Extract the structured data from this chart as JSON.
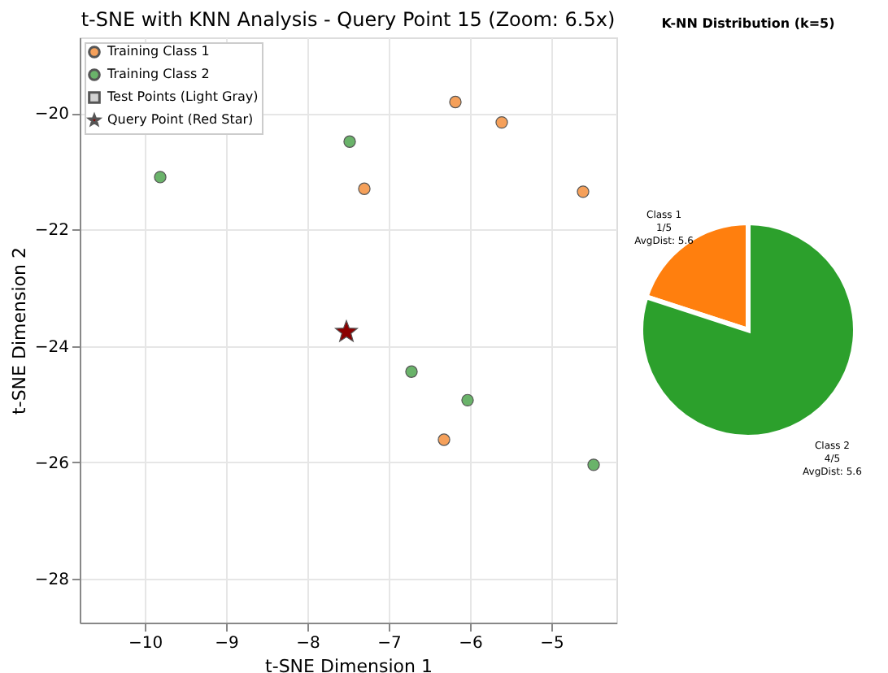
{
  "chart_data": [
    {
      "type": "scatter",
      "title": "t-SNE with KNN Analysis - Query Point 15 (Zoom: 6.5x)",
      "xlabel": "t-SNE Dimension 1",
      "ylabel": "t-SNE Dimension 2",
      "xlim": [
        -10.8,
        -4.2
      ],
      "ylim": [
        -28.75,
        -18.7
      ],
      "xticks": [
        -10,
        -9,
        -8,
        -7,
        -6,
        -5
      ],
      "yticks": [
        -28,
        -26,
        -24,
        -22,
        -20
      ],
      "grid": true,
      "legend": "top left",
      "series": [
        {
          "name": "Training Class 1",
          "color": "#f5a05a",
          "marker": "circle",
          "x": [
            -6.18,
            -5.61,
            -7.3,
            -4.61,
            -6.32
          ],
          "values": [
            -19.81,
            -20.16,
            -21.3,
            -21.35,
            -25.61
          ]
        },
        {
          "name": "Training Class 2",
          "color": "#6ab36a",
          "marker": "circle",
          "x": [
            -7.48,
            -9.81,
            -6.72,
            -6.03,
            -4.48
          ],
          "values": [
            -20.49,
            -21.1,
            -24.44,
            -24.93,
            -26.04
          ]
        },
        {
          "name": "Test Points (Light Gray)",
          "color": "#d3d3d3",
          "marker": "square"
        },
        {
          "name": "Query Point (Red Star)",
          "color": "#8b0000",
          "marker": "star",
          "x": [
            -7.52
          ],
          "values": [
            -23.76
          ]
        }
      ]
    },
    {
      "type": "pie",
      "title": "K-NN Distribution (k=5)",
      "categories": [
        "Class 1\n1/5\nAvgDist: 5.6",
        "Class 2\n4/5\nAvgDist: 5.6"
      ],
      "values": [
        20,
        80
      ],
      "colors": [
        "#ff7f0e",
        "#2ca02c"
      ]
    }
  ]
}
